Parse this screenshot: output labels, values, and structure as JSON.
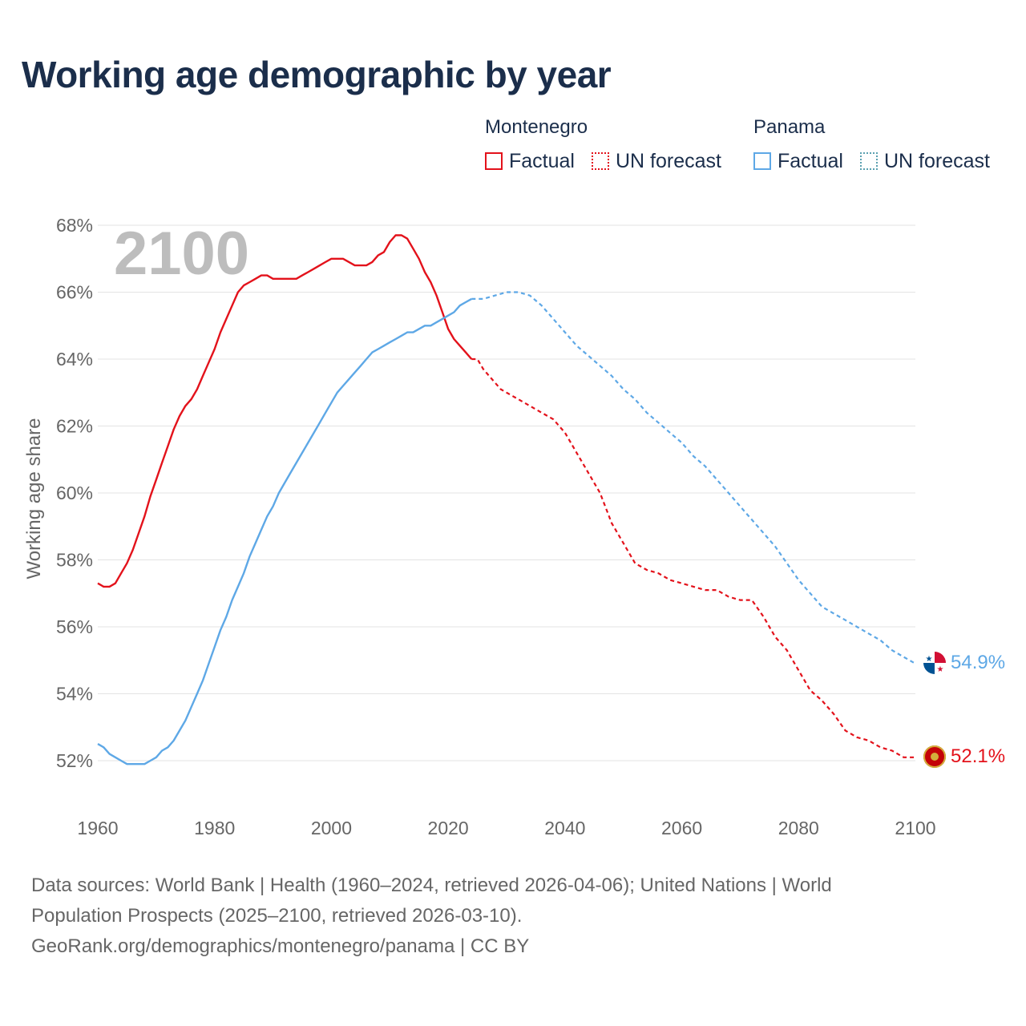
{
  "title": "Working age demographic by year",
  "legend": {
    "groups": [
      {
        "name": "Montenegro",
        "factual_label": "Factual",
        "forecast_label": "UN forecast",
        "color": "#e3121b"
      },
      {
        "name": "Panama",
        "factual_label": "Factual",
        "forecast_label": "UN forecast",
        "color": "#5ea8e6"
      }
    ]
  },
  "sources": {
    "line1": "Data sources: World Bank | Health (1960–2024, retrieved 2026-04-06); United Nations | World",
    "line2": "Population Prospects (2025–2100, retrieved 2026-03-10).",
    "line3": "GeoRank.org/demographics/montenegro/panama | CC BY"
  },
  "chart_data": {
    "type": "line",
    "title": "Working age demographic by year",
    "ylabel": "Working age share",
    "xlabel": "",
    "year_overlay": "2100",
    "xlim": [
      1960,
      2100
    ],
    "ylim": [
      51,
      68
    ],
    "x_ticks": [
      1960,
      1980,
      2000,
      2020,
      2040,
      2060,
      2080,
      2100
    ],
    "y_ticks": [
      52,
      54,
      56,
      58,
      60,
      62,
      64,
      66,
      68
    ],
    "y_tick_labels": [
      "52%",
      "54%",
      "56%",
      "58%",
      "60%",
      "62%",
      "64%",
      "66%",
      "68%"
    ],
    "grid": true,
    "series": [
      {
        "name": "Montenegro",
        "color": "#e3121b",
        "end_label": "52.1%",
        "factual": [
          [
            1960,
            57.3
          ],
          [
            1961,
            57.2
          ],
          [
            1962,
            57.2
          ],
          [
            1963,
            57.3
          ],
          [
            1964,
            57.6
          ],
          [
            1965,
            57.9
          ],
          [
            1966,
            58.3
          ],
          [
            1967,
            58.8
          ],
          [
            1968,
            59.3
          ],
          [
            1969,
            59.9
          ],
          [
            1970,
            60.4
          ],
          [
            1971,
            60.9
          ],
          [
            1972,
            61.4
          ],
          [
            1973,
            61.9
          ],
          [
            1974,
            62.3
          ],
          [
            1975,
            62.6
          ],
          [
            1976,
            62.8
          ],
          [
            1977,
            63.1
          ],
          [
            1978,
            63.5
          ],
          [
            1979,
            63.9
          ],
          [
            1980,
            64.3
          ],
          [
            1981,
            64.8
          ],
          [
            1982,
            65.2
          ],
          [
            1983,
            65.6
          ],
          [
            1984,
            66.0
          ],
          [
            1985,
            66.2
          ],
          [
            1986,
            66.3
          ],
          [
            1987,
            66.4
          ],
          [
            1988,
            66.5
          ],
          [
            1989,
            66.5
          ],
          [
            1990,
            66.4
          ],
          [
            1991,
            66.4
          ],
          [
            1992,
            66.4
          ],
          [
            1993,
            66.4
          ],
          [
            1994,
            66.4
          ],
          [
            1995,
            66.5
          ],
          [
            1996,
            66.6
          ],
          [
            1997,
            66.7
          ],
          [
            1998,
            66.8
          ],
          [
            1999,
            66.9
          ],
          [
            2000,
            67.0
          ],
          [
            2001,
            67.0
          ],
          [
            2002,
            67.0
          ],
          [
            2003,
            66.9
          ],
          [
            2004,
            66.8
          ],
          [
            2005,
            66.8
          ],
          [
            2006,
            66.8
          ],
          [
            2007,
            66.9
          ],
          [
            2008,
            67.1
          ],
          [
            2009,
            67.2
          ],
          [
            2010,
            67.5
          ],
          [
            2011,
            67.7
          ],
          [
            2012,
            67.7
          ],
          [
            2013,
            67.6
          ],
          [
            2014,
            67.3
          ],
          [
            2015,
            67.0
          ],
          [
            2016,
            66.6
          ],
          [
            2017,
            66.3
          ],
          [
            2018,
            65.9
          ],
          [
            2019,
            65.4
          ],
          [
            2020,
            64.9
          ],
          [
            2021,
            64.6
          ],
          [
            2022,
            64.4
          ],
          [
            2023,
            64.2
          ],
          [
            2024,
            64.0
          ]
        ],
        "forecast": [
          [
            2024,
            64.0
          ],
          [
            2025,
            64.0
          ],
          [
            2026,
            63.7
          ],
          [
            2027,
            63.5
          ],
          [
            2028,
            63.3
          ],
          [
            2029,
            63.1
          ],
          [
            2030,
            63.0
          ],
          [
            2032,
            62.8
          ],
          [
            2034,
            62.6
          ],
          [
            2036,
            62.4
          ],
          [
            2038,
            62.2
          ],
          [
            2040,
            61.8
          ],
          [
            2042,
            61.2
          ],
          [
            2044,
            60.6
          ],
          [
            2046,
            60.0
          ],
          [
            2048,
            59.1
          ],
          [
            2050,
            58.5
          ],
          [
            2052,
            57.9
          ],
          [
            2054,
            57.7
          ],
          [
            2056,
            57.6
          ],
          [
            2058,
            57.4
          ],
          [
            2060,
            57.3
          ],
          [
            2062,
            57.2
          ],
          [
            2064,
            57.1
          ],
          [
            2066,
            57.1
          ],
          [
            2068,
            56.9
          ],
          [
            2070,
            56.8
          ],
          [
            2072,
            56.8
          ],
          [
            2074,
            56.3
          ],
          [
            2076,
            55.7
          ],
          [
            2078,
            55.3
          ],
          [
            2080,
            54.7
          ],
          [
            2082,
            54.1
          ],
          [
            2084,
            53.8
          ],
          [
            2086,
            53.4
          ],
          [
            2088,
            52.9
          ],
          [
            2090,
            52.7
          ],
          [
            2092,
            52.6
          ],
          [
            2094,
            52.4
          ],
          [
            2096,
            52.3
          ],
          [
            2098,
            52.1
          ],
          [
            2100,
            52.1
          ]
        ]
      },
      {
        "name": "Panama",
        "color": "#5ea8e6",
        "end_label": "54.9%",
        "factual": [
          [
            1960,
            52.5
          ],
          [
            1961,
            52.4
          ],
          [
            1962,
            52.2
          ],
          [
            1963,
            52.1
          ],
          [
            1964,
            52.0
          ],
          [
            1965,
            51.9
          ],
          [
            1966,
            51.9
          ],
          [
            1967,
            51.9
          ],
          [
            1968,
            51.9
          ],
          [
            1969,
            52.0
          ],
          [
            1970,
            52.1
          ],
          [
            1971,
            52.3
          ],
          [
            1972,
            52.4
          ],
          [
            1973,
            52.6
          ],
          [
            1974,
            52.9
          ],
          [
            1975,
            53.2
          ],
          [
            1976,
            53.6
          ],
          [
            1977,
            54.0
          ],
          [
            1978,
            54.4
          ],
          [
            1979,
            54.9
          ],
          [
            1980,
            55.4
          ],
          [
            1981,
            55.9
          ],
          [
            1982,
            56.3
          ],
          [
            1983,
            56.8
          ],
          [
            1984,
            57.2
          ],
          [
            1985,
            57.6
          ],
          [
            1986,
            58.1
          ],
          [
            1987,
            58.5
          ],
          [
            1988,
            58.9
          ],
          [
            1989,
            59.3
          ],
          [
            1990,
            59.6
          ],
          [
            1991,
            60.0
          ],
          [
            1992,
            60.3
          ],
          [
            1993,
            60.6
          ],
          [
            1994,
            60.9
          ],
          [
            1995,
            61.2
          ],
          [
            1996,
            61.5
          ],
          [
            1997,
            61.8
          ],
          [
            1998,
            62.1
          ],
          [
            1999,
            62.4
          ],
          [
            2000,
            62.7
          ],
          [
            2001,
            63.0
          ],
          [
            2002,
            63.2
          ],
          [
            2003,
            63.4
          ],
          [
            2004,
            63.6
          ],
          [
            2005,
            63.8
          ],
          [
            2006,
            64.0
          ],
          [
            2007,
            64.2
          ],
          [
            2008,
            64.3
          ],
          [
            2009,
            64.4
          ],
          [
            2010,
            64.5
          ],
          [
            2011,
            64.6
          ],
          [
            2012,
            64.7
          ],
          [
            2013,
            64.8
          ],
          [
            2014,
            64.8
          ],
          [
            2015,
            64.9
          ],
          [
            2016,
            65.0
          ],
          [
            2017,
            65.0
          ],
          [
            2018,
            65.1
          ],
          [
            2019,
            65.2
          ],
          [
            2020,
            65.3
          ],
          [
            2021,
            65.4
          ],
          [
            2022,
            65.6
          ],
          [
            2023,
            65.7
          ],
          [
            2024,
            65.8
          ]
        ],
        "forecast": [
          [
            2024,
            65.8
          ],
          [
            2026,
            65.8
          ],
          [
            2028,
            65.9
          ],
          [
            2030,
            66.0
          ],
          [
            2032,
            66.0
          ],
          [
            2034,
            65.9
          ],
          [
            2036,
            65.6
          ],
          [
            2038,
            65.2
          ],
          [
            2040,
            64.8
          ],
          [
            2042,
            64.4
          ],
          [
            2044,
            64.1
          ],
          [
            2046,
            63.8
          ],
          [
            2048,
            63.5
          ],
          [
            2050,
            63.1
          ],
          [
            2052,
            62.8
          ],
          [
            2054,
            62.4
          ],
          [
            2056,
            62.1
          ],
          [
            2058,
            61.8
          ],
          [
            2060,
            61.5
          ],
          [
            2062,
            61.1
          ],
          [
            2064,
            60.8
          ],
          [
            2066,
            60.4
          ],
          [
            2068,
            60.0
          ],
          [
            2070,
            59.6
          ],
          [
            2072,
            59.2
          ],
          [
            2074,
            58.8
          ],
          [
            2076,
            58.4
          ],
          [
            2078,
            57.9
          ],
          [
            2080,
            57.4
          ],
          [
            2082,
            57.0
          ],
          [
            2084,
            56.6
          ],
          [
            2086,
            56.4
          ],
          [
            2088,
            56.2
          ],
          [
            2090,
            56.0
          ],
          [
            2092,
            55.8
          ],
          [
            2094,
            55.6
          ],
          [
            2096,
            55.3
          ],
          [
            2098,
            55.1
          ],
          [
            2100,
            54.9
          ]
        ]
      }
    ]
  }
}
